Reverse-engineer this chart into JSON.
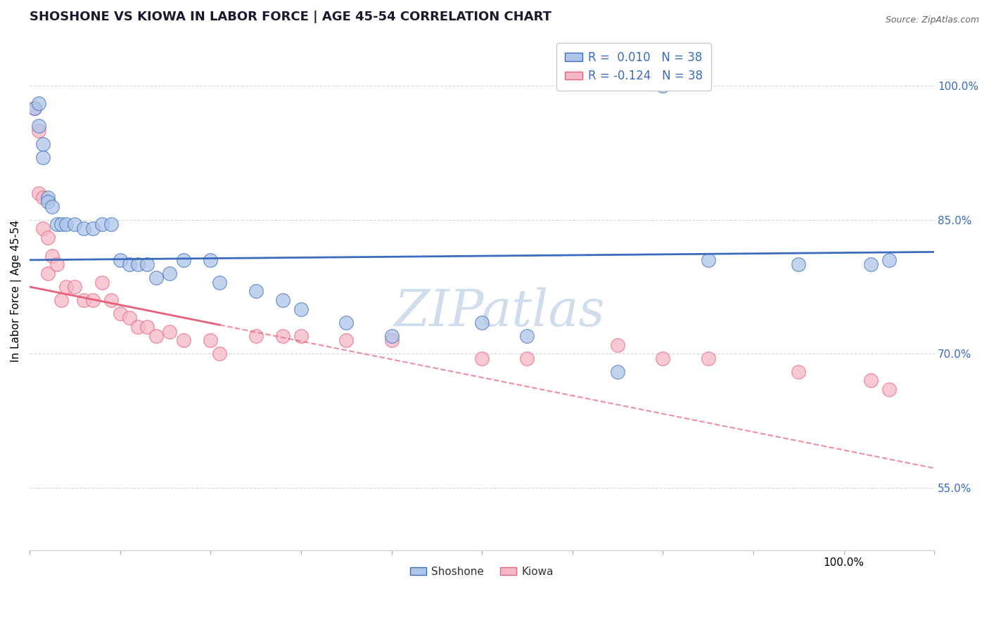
{
  "title": "SHOSHONE VS KIOWA IN LABOR FORCE | AGE 45-54 CORRELATION CHART",
  "source": "Source: ZipAtlas.com",
  "ylabel": "In Labor Force | Age 45-54",
  "xlim": [
    0.0,
    1.0
  ],
  "ylim": [
    0.48,
    1.06
  ],
  "yticks": [
    0.55,
    0.7,
    0.85,
    1.0
  ],
  "ytick_labels": [
    "55.0%",
    "70.0%",
    "85.0%",
    "100.0%"
  ],
  "r_shoshone": 0.01,
  "r_kiowa": -0.124,
  "n": 38,
  "legend_label_shoshone": "Shoshone",
  "legend_label_kiowa": "Kiowa",
  "shoshone_color": "#aec6e8",
  "kiowa_color": "#f5b8c8",
  "line_shoshone_color": "#3a6bbf",
  "line_kiowa_color": "#e8607a",
  "background_color": "#ffffff",
  "grid_color": "#d8d8d8",
  "shoshone_x": [
    0.005,
    0.01,
    0.01,
    0.015,
    0.015,
    0.02,
    0.02,
    0.025,
    0.03,
    0.035,
    0.04,
    0.05,
    0.06,
    0.07,
    0.08,
    0.09,
    0.1,
    0.11,
    0.12,
    0.13,
    0.14,
    0.155,
    0.17,
    0.2,
    0.21,
    0.25,
    0.28,
    0.3,
    0.35,
    0.4,
    0.5,
    0.55,
    0.65,
    0.7,
    0.75,
    0.85,
    0.93,
    0.95
  ],
  "shoshone_y": [
    0.975,
    0.98,
    0.955,
    0.935,
    0.92,
    0.875,
    0.87,
    0.865,
    0.845,
    0.845,
    0.845,
    0.845,
    0.84,
    0.84,
    0.845,
    0.845,
    0.805,
    0.8,
    0.8,
    0.8,
    0.785,
    0.79,
    0.805,
    0.805,
    0.78,
    0.77,
    0.76,
    0.75,
    0.735,
    0.72,
    0.735,
    0.72,
    0.68,
    1.0,
    0.805,
    0.8,
    0.8,
    0.805
  ],
  "kiowa_x": [
    0.005,
    0.01,
    0.01,
    0.015,
    0.015,
    0.02,
    0.02,
    0.025,
    0.03,
    0.035,
    0.04,
    0.05,
    0.06,
    0.07,
    0.08,
    0.09,
    0.1,
    0.11,
    0.12,
    0.13,
    0.14,
    0.155,
    0.17,
    0.2,
    0.21,
    0.25,
    0.28,
    0.3,
    0.35,
    0.4,
    0.5,
    0.55,
    0.65,
    0.7,
    0.75,
    0.85,
    0.93,
    0.95
  ],
  "kiowa_y": [
    0.975,
    0.95,
    0.88,
    0.875,
    0.84,
    0.83,
    0.79,
    0.81,
    0.8,
    0.76,
    0.775,
    0.775,
    0.76,
    0.76,
    0.78,
    0.76,
    0.745,
    0.74,
    0.73,
    0.73,
    0.72,
    0.725,
    0.715,
    0.715,
    0.7,
    0.72,
    0.72,
    0.72,
    0.715,
    0.715,
    0.695,
    0.695,
    0.71,
    0.695,
    0.695,
    0.68,
    0.67,
    0.66
  ],
  "line_shoshone_y0": 0.805,
  "line_shoshone_y1": 0.814,
  "line_kiowa_y0": 0.775,
  "line_kiowa_y1": 0.572,
  "watermark_text": "ZIPatlas",
  "watermark_color": "#c8d8ea"
}
